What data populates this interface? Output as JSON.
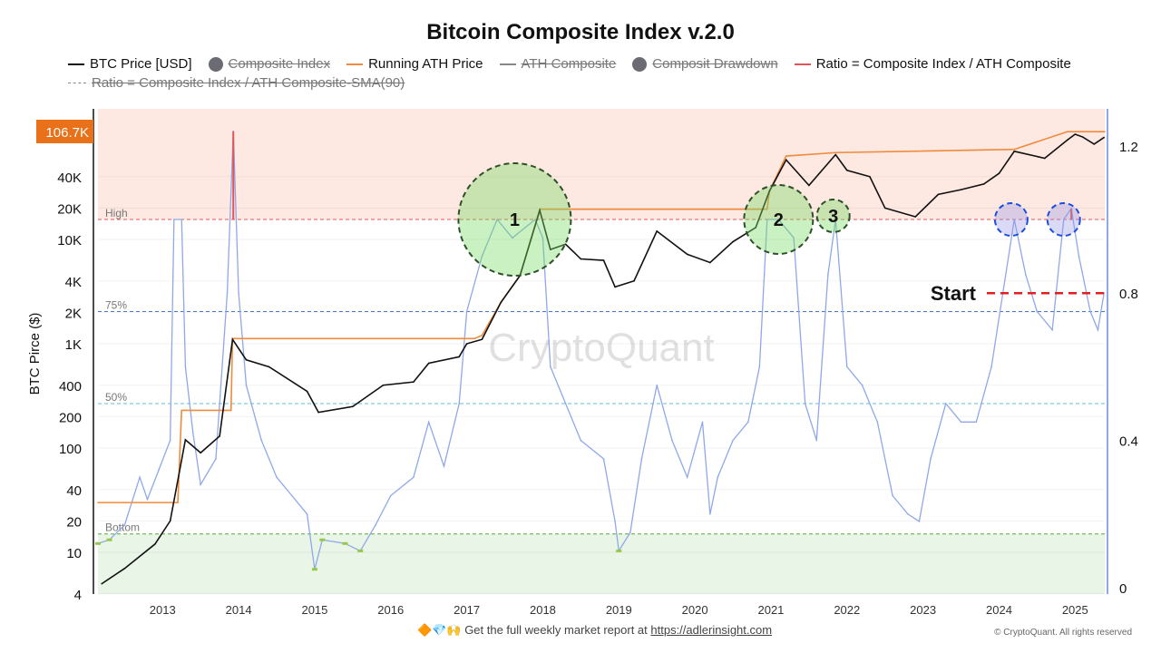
{
  "chart_data": {
    "type": "line",
    "title": "Bitcoin Composite Index v.2.0",
    "ylabel": "BTC Pirce ($)",
    "y_scale": "log",
    "y_ticks": [
      4,
      10,
      20,
      40,
      100,
      200,
      400,
      1000,
      2000,
      4000,
      10000,
      20000,
      40000
    ],
    "y_tick_labels": [
      "4",
      "10",
      "20",
      "40",
      "100",
      "200",
      "400",
      "1K",
      "2K",
      "4K",
      "10K",
      "20K",
      "40K"
    ],
    "current_price_label": "106.7K",
    "y2_ticks": [
      0,
      0.4,
      0.8,
      1.2
    ],
    "y2_tick_labels": [
      "0",
      "0.4",
      "0.8",
      "1.2"
    ],
    "x_ticks": [
      2013,
      2014,
      2015,
      2016,
      2017,
      2018,
      2019,
      2020,
      2021,
      2022,
      2023,
      2024,
      2025
    ],
    "x_tick_labels": [
      "2013",
      "2014",
      "2015",
      "2016",
      "2017",
      "2018",
      "2019",
      "2020",
      "2021",
      "2022",
      "2023",
      "2024",
      "2025"
    ],
    "xlim": [
      2012.15,
      2025.39
    ],
    "ylim_price": [
      4,
      110000
    ],
    "ylim_ratio": [
      0,
      1.25
    ],
    "grid": true,
    "legend": {
      "placement": "top",
      "entries": [
        {
          "label": "BTC Price [USD]",
          "style": "line",
          "color": "#111111",
          "hidden": false
        },
        {
          "label": "Composite Index",
          "style": "dot",
          "color": "#6b6b74",
          "hidden": true
        },
        {
          "label": "Running ATH Price",
          "style": "line",
          "color": "#f08a3c",
          "hidden": false
        },
        {
          "label": "ATH Composite",
          "style": "line",
          "color": "#888888",
          "hidden": true
        },
        {
          "label": "Composit Drawdown",
          "style": "dot",
          "color": "#6b6b74",
          "hidden": true
        },
        {
          "label": "Ratio = Composite Index / ATH  Composite",
          "style": "line",
          "color": "#e05555",
          "hidden": false
        },
        {
          "label": "Ratio = Composite Index / ATH  Composite-SMA(90)",
          "style": "dash",
          "color": "#888888",
          "hidden": true
        }
      ]
    },
    "series": [
      {
        "name": "BTC Price [USD]",
        "axis": "price",
        "color": "#111111",
        "x": [
          2012.2,
          2012.5,
          2012.9,
          2013.1,
          2013.3,
          2013.5,
          2013.75,
          2013.92,
          2014.1,
          2014.4,
          2014.9,
          2015.05,
          2015.5,
          2015.9,
          2016.3,
          2016.5,
          2016.9,
          2017.0,
          2017.2,
          2017.45,
          2017.7,
          2017.96,
          2018.1,
          2018.3,
          2018.5,
          2018.8,
          2018.95,
          2019.2,
          2019.5,
          2019.9,
          2020.2,
          2020.5,
          2020.8,
          2020.98,
          2021.2,
          2021.5,
          2021.85,
          2022.0,
          2022.3,
          2022.5,
          2022.9,
          2023.2,
          2023.5,
          2023.8,
          2024.0,
          2024.2,
          2024.6,
          2024.9,
          2025.0,
          2025.1,
          2025.25,
          2025.38
        ],
        "y": [
          5,
          7,
          12,
          20,
          120,
          90,
          130,
          1100,
          700,
          600,
          350,
          220,
          250,
          400,
          430,
          650,
          750,
          1000,
          1100,
          2500,
          4500,
          19000,
          8000,
          9000,
          6500,
          6300,
          3500,
          4000,
          12000,
          7200,
          6000,
          9500,
          13000,
          29000,
          58000,
          33000,
          65000,
          46000,
          40000,
          20000,
          16500,
          27000,
          30000,
          34000,
          43000,
          70000,
          60000,
          90000,
          102000,
          96000,
          82000,
          95000
        ]
      },
      {
        "name": "Running ATH Price",
        "axis": "price",
        "color": "#f08a3c",
        "x": [
          2012.15,
          2013.2,
          2013.25,
          2013.9,
          2013.92,
          2017.1,
          2017.2,
          2017.45,
          2017.7,
          2017.96,
          2020.95,
          2020.98,
          2021.2,
          2021.85,
          2024.2,
          2024.9,
          2025.39
        ],
        "y": [
          30,
          30,
          230,
          230,
          1120,
          1120,
          1200,
          2500,
          4500,
          19500,
          19500,
          29000,
          63000,
          68000,
          73000,
          108000,
          108000
        ]
      },
      {
        "name": "Ratio = Composite Index / ATH  Composite",
        "axis": "ratio",
        "color": "#8fa8e8",
        "x": [
          2012.15,
          2012.3,
          2012.5,
          2012.7,
          2012.8,
          2012.95,
          2013.1,
          2013.15,
          2013.25,
          2013.3,
          2013.4,
          2013.5,
          2013.7,
          2013.85,
          2013.93,
          2014.0,
          2014.1,
          2014.3,
          2014.5,
          2014.7,
          2014.9,
          2015.0,
          2015.1,
          2015.4,
          2015.6,
          2015.8,
          2016.0,
          2016.3,
          2016.5,
          2016.7,
          2016.9,
          2017.0,
          2017.2,
          2017.4,
          2017.6,
          2017.9,
          2018.0,
          2018.1,
          2018.3,
          2018.5,
          2018.8,
          2018.95,
          2019.0,
          2019.15,
          2019.3,
          2019.5,
          2019.7,
          2019.9,
          2020.1,
          2020.2,
          2020.3,
          2020.5,
          2020.7,
          2020.85,
          2020.95,
          2021.1,
          2021.3,
          2021.45,
          2021.6,
          2021.75,
          2021.85,
          2022.0,
          2022.2,
          2022.4,
          2022.6,
          2022.8,
          2022.95,
          2023.1,
          2023.3,
          2023.5,
          2023.7,
          2023.9,
          2024.05,
          2024.2,
          2024.35,
          2024.5,
          2024.7,
          2024.85,
          2024.95,
          2025.05,
          2025.2,
          2025.3,
          2025.38
        ],
        "y": [
          0.12,
          0.13,
          0.17,
          0.3,
          0.24,
          0.32,
          0.4,
          1.0,
          1.0,
          0.6,
          0.42,
          0.28,
          0.35,
          0.8,
          1.24,
          0.8,
          0.55,
          0.4,
          0.3,
          0.25,
          0.2,
          0.05,
          0.13,
          0.12,
          0.1,
          0.17,
          0.25,
          0.3,
          0.45,
          0.33,
          0.5,
          0.75,
          0.9,
          1.0,
          0.95,
          1.0,
          0.95,
          0.6,
          0.5,
          0.4,
          0.35,
          0.18,
          0.1,
          0.15,
          0.35,
          0.55,
          0.4,
          0.3,
          0.45,
          0.2,
          0.3,
          0.4,
          0.45,
          0.6,
          1.0,
          1.0,
          0.95,
          0.5,
          0.4,
          0.85,
          1.0,
          0.6,
          0.55,
          0.45,
          0.25,
          0.2,
          0.18,
          0.35,
          0.5,
          0.45,
          0.45,
          0.6,
          0.8,
          1.0,
          0.85,
          0.75,
          0.7,
          1.0,
          1.03,
          0.9,
          0.75,
          0.7,
          0.8
        ]
      }
    ],
    "bands": [
      {
        "label": "High",
        "value": 1.0,
        "color": "#e05555",
        "zone_above_color": "#fde8e2"
      },
      {
        "label": "75%",
        "value": 0.75,
        "color": "#4a78c8"
      },
      {
        "label": "50%",
        "value": 0.5,
        "color": "#5bbcd6"
      },
      {
        "label": "Bottom",
        "value": 0.146,
        "color": "#5aa83a",
        "zone_below_color": "#e9f5e6"
      }
    ],
    "colors": {
      "above_high": "#e05555",
      "below_bottom": "#9acd32"
    },
    "annotations": [
      {
        "label": "1",
        "x": 2017.63,
        "y": 1.0,
        "style": "green-dashed-circle"
      },
      {
        "label": "2",
        "x": 2021.1,
        "y": 1.0,
        "style": "green-dashed-circle"
      },
      {
        "label": "3",
        "x": 2021.82,
        "y": 1.01,
        "style": "green-dashed-circle"
      },
      {
        "label": "",
        "x": 2024.16,
        "y": 1.0,
        "style": "blue-dashed-circle"
      },
      {
        "label": "",
        "x": 2024.85,
        "y": 1.0,
        "style": "blue-dashed-circle"
      },
      {
        "label": "Start",
        "x": 2023.9,
        "y": 0.8,
        "style": "red-dashed-line"
      }
    ],
    "watermark": "CryptoQuant"
  },
  "footer": {
    "emoji": "🔶💎🙌",
    "text": "Get the full weekly market report at ",
    "link": "https://adlerinsight.com",
    "copyright": "© CryptoQuant. All rights reserved"
  }
}
